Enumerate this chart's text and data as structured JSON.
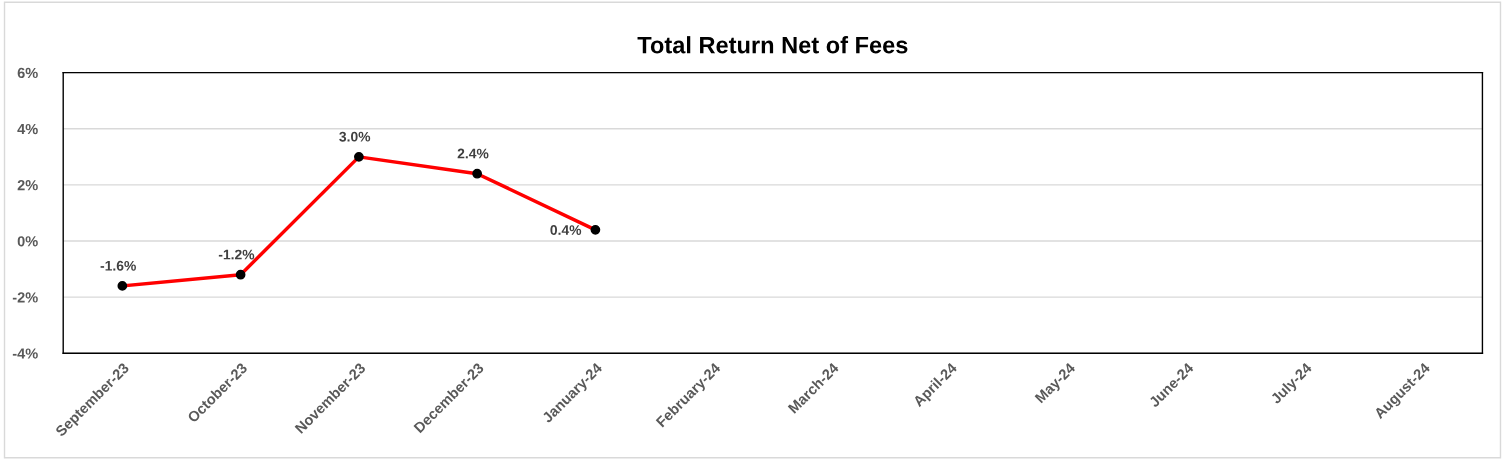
{
  "chart_data": {
    "type": "line",
    "title": "Total Return Net of Fees",
    "categories": [
      "September-23",
      "October-23",
      "November-23",
      "December-23",
      "January-24",
      "February-24",
      "March-24",
      "April-24",
      "May-24",
      "June-24",
      "July-24",
      "August-24"
    ],
    "series": [
      {
        "color": "#ff0000",
        "values": [
          -1.6,
          -1.2,
          3.0,
          2.4,
          0.4,
          null,
          null,
          null,
          null,
          null,
          null,
          null
        ],
        "value_labels": [
          "-1.6%",
          "-1.2%",
          "3.0%",
          "2.4%",
          "0.4%",
          null,
          null,
          null,
          null,
          null,
          null,
          null
        ]
      }
    ],
    "ylim": [
      -4,
      6
    ],
    "yticks": [
      {
        "value": -4,
        "label": "-4%"
      },
      {
        "value": -2,
        "label": "-2%"
      },
      {
        "value": 0,
        "label": "0%"
      },
      {
        "value": 2,
        "label": "2%"
      },
      {
        "value": 4,
        "label": "4%"
      },
      {
        "value": 6,
        "label": "6%"
      }
    ],
    "grid": "y",
    "marker": "circle",
    "line_style": "solid",
    "legend": false
  }
}
